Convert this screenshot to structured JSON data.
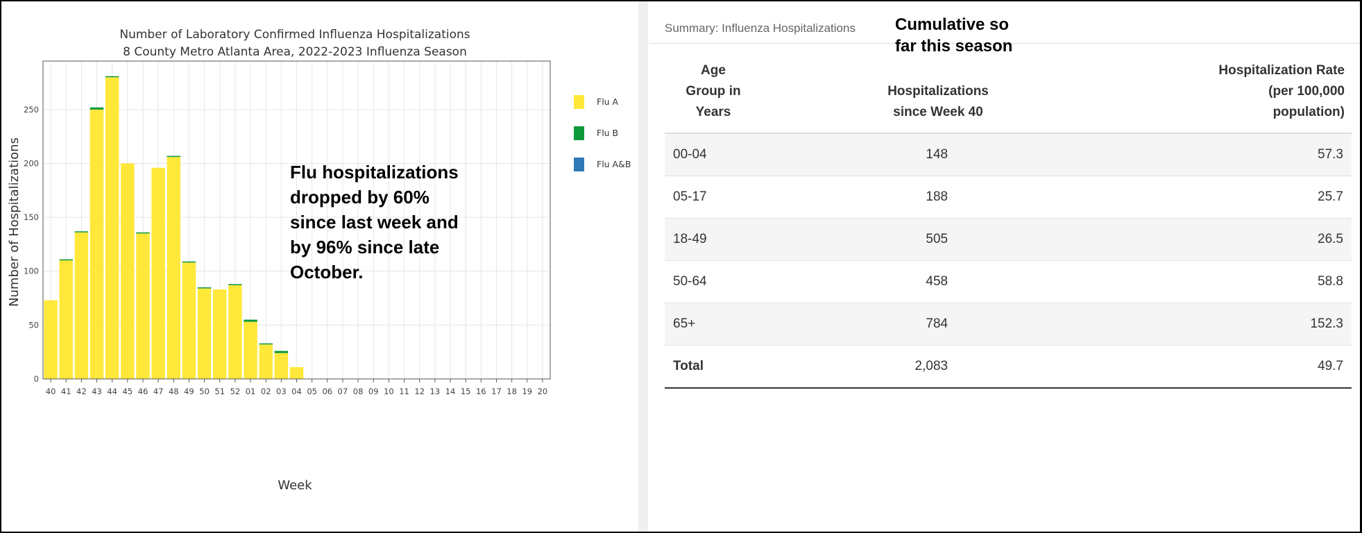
{
  "chart_data": {
    "type": "bar",
    "stacked": true,
    "title": [
      "Number of Laboratory Confirmed Influenza Hospitalizations",
      "8 County Metro Atlanta Area, 2022-2023 Influenza Season"
    ],
    "xlabel": "Week",
    "ylabel": "Number of Hospitalizations",
    "ylim": [
      0,
      295
    ],
    "yticks": [
      0,
      50,
      100,
      150,
      200,
      250
    ],
    "grid": true,
    "legend_position": "right",
    "categories": [
      "40",
      "41",
      "42",
      "43",
      "44",
      "45",
      "46",
      "47",
      "48",
      "49",
      "50",
      "51",
      "52",
      "01",
      "02",
      "03",
      "04",
      "05",
      "06",
      "07",
      "08",
      "09",
      "10",
      "11",
      "12",
      "13",
      "14",
      "15",
      "16",
      "17",
      "18",
      "19",
      "20"
    ],
    "series": [
      {
        "name": "Flu A",
        "color": "#ffe83a",
        "values": [
          73,
          110,
          136,
          250,
          280,
          200,
          135,
          196,
          206,
          108,
          84,
          83,
          87,
          53,
          32,
          24,
          11,
          0,
          0,
          0,
          0,
          0,
          0,
          0,
          0,
          0,
          0,
          0,
          0,
          0,
          0,
          0,
          0
        ]
      },
      {
        "name": "Flu B",
        "color": "#0e9a3c",
        "values": [
          0,
          1,
          1,
          2,
          1,
          0,
          1,
          0,
          1,
          1,
          1,
          0,
          1,
          2,
          1,
          2,
          0,
          0,
          0,
          0,
          0,
          0,
          0,
          0,
          0,
          0,
          0,
          0,
          0,
          0,
          0,
          0,
          0
        ]
      },
      {
        "name": "Flu A&B",
        "color": "#2f79b7",
        "values": [
          0,
          0,
          0,
          0,
          0,
          0,
          0,
          0,
          0,
          0,
          0,
          0,
          0,
          0,
          0,
          0,
          0,
          0,
          0,
          0,
          0,
          0,
          0,
          0,
          0,
          0,
          0,
          0,
          0,
          0,
          0,
          0,
          0
        ]
      }
    ]
  },
  "callout": {
    "lines": [
      "Flu hospitalizations",
      "dropped by 60%",
      "since last week and",
      "by 96% since late",
      "October."
    ]
  },
  "summary": {
    "title": "Summary: Influenza Hospitalizations",
    "note_lines": [
      "Cumulative so",
      "far this season"
    ],
    "headers": [
      [
        "Age",
        "Group in",
        "Years"
      ],
      [
        "Hospitalizations",
        "since Week 40"
      ],
      [
        "Hospitalization Rate",
        "(per 100,000",
        "population)"
      ]
    ],
    "rows": [
      {
        "age": "00-04",
        "hosp": "148",
        "rate": "57.3"
      },
      {
        "age": "05-17",
        "hosp": "188",
        "rate": "25.7"
      },
      {
        "age": "18-49",
        "hosp": "505",
        "rate": "26.5"
      },
      {
        "age": "50-64",
        "hosp": "458",
        "rate": "58.8"
      },
      {
        "age": "65+",
        "hosp": "784",
        "rate": "152.3"
      }
    ],
    "total": {
      "age": "Total",
      "hosp": "2,083",
      "rate": "49.7"
    }
  }
}
